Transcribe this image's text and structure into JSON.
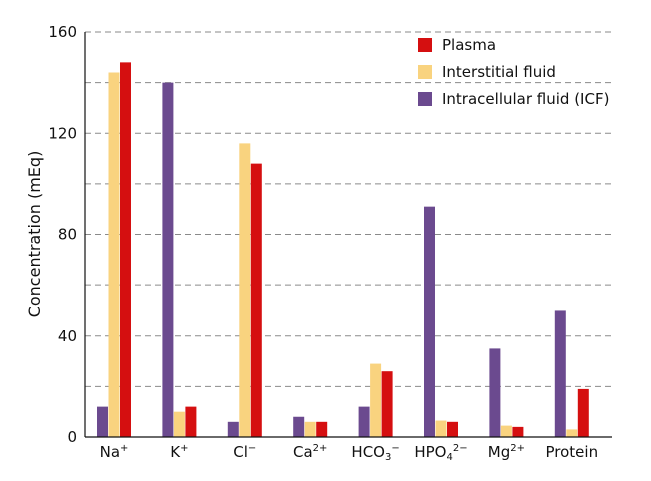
{
  "chart_data": {
    "type": "bar",
    "ylabel": "Concentration (mEq)",
    "xlabel": "",
    "ylim": [
      0,
      160
    ],
    "y_ticks": [
      0,
      40,
      80,
      120,
      160
    ],
    "y_minor_gridlines": [
      20,
      60,
      100,
      140
    ],
    "grid": true,
    "legend_position": "top-right",
    "categories": [
      {
        "base": "Na",
        "sup": "+"
      },
      {
        "base": "K",
        "sup": "+"
      },
      {
        "base": "Cl",
        "sup": "−"
      },
      {
        "base": "Ca",
        "sup": "2+"
      },
      {
        "base": "HCO",
        "sub": "3",
        "sup": "−"
      },
      {
        "base": "HPO",
        "sub": "4",
        "sup": "2−"
      },
      {
        "base": "Mg",
        "sup": "2+"
      },
      {
        "base": "Protein"
      }
    ],
    "series": [
      {
        "name": "Intracellular fluid (ICF)",
        "color": "#6b4a8f",
        "values": [
          12,
          140,
          6,
          8,
          12,
          91,
          35,
          50
        ]
      },
      {
        "name": "Interstitial fluid",
        "color": "#f9d37f",
        "values": [
          144,
          10,
          116,
          6,
          29,
          6.5,
          4.5,
          3
        ]
      },
      {
        "name": "Plasma",
        "color": "#d50f10",
        "values": [
          148,
          12,
          108,
          6,
          26,
          6,
          4,
          19
        ]
      }
    ],
    "legend_order": [
      "Plasma",
      "Interstitial fluid",
      "Intracellular fluid (ICF)"
    ]
  }
}
